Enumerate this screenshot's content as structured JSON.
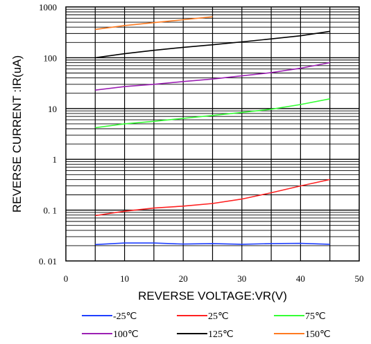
{
  "chart_data": {
    "type": "line",
    "title": "",
    "xlabel": "REVERSE VOLTAGE:VR(V)",
    "ylabel": "REVERSE CURRENT :IR(uA)",
    "xlim": [
      0,
      50
    ],
    "ylim": [
      0.01,
      1000
    ],
    "y_scale": "log",
    "grid": true,
    "legend_position": "bottom",
    "x_ticks": [
      "0",
      "10",
      "20",
      "30",
      "40",
      "50"
    ],
    "y_ticks": [
      "0. 01",
      "0. 1",
      "1",
      "10",
      "100",
      "1000"
    ],
    "series": [
      {
        "name": "-25℃",
        "color": "#1f3fff",
        "x": [
          5,
          10,
          15,
          20,
          25,
          30,
          35,
          40,
          45
        ],
        "y": [
          0.021,
          0.0225,
          0.0225,
          0.0215,
          0.022,
          0.0213,
          0.022,
          0.0222,
          0.0213
        ]
      },
      {
        "name": "25℃",
        "color": "#ff2020",
        "x": [
          5,
          10,
          15,
          20,
          25,
          30,
          35,
          40,
          45
        ],
        "y": [
          0.078,
          0.095,
          0.11,
          0.12,
          0.135,
          0.165,
          0.22,
          0.3,
          0.4
        ]
      },
      {
        "name": "75℃",
        "color": "#33ff33",
        "x": [
          5,
          10,
          15,
          20,
          25,
          30,
          35,
          40,
          45
        ],
        "y": [
          4.2,
          5.0,
          5.6,
          6.4,
          7.3,
          8.4,
          9.7,
          12.0,
          15.5
        ]
      },
      {
        "name": "100℃",
        "color": "#9b1fb3",
        "x": [
          5,
          10,
          15,
          20,
          25,
          30,
          35,
          40,
          45
        ],
        "y": [
          23,
          27,
          30,
          34,
          38,
          44,
          51,
          62,
          80
        ]
      },
      {
        "name": "125℃",
        "color": "#000000",
        "x": [
          5,
          10,
          15,
          20,
          25,
          30,
          35,
          40,
          45
        ],
        "y": [
          100,
          120,
          140,
          160,
          180,
          205,
          235,
          270,
          330
        ]
      },
      {
        "name": "150℃",
        "color": "#ff7a20",
        "x": [
          5,
          10,
          15,
          20,
          25
        ],
        "y": [
          360,
          430,
          490,
          560,
          640
        ]
      }
    ]
  }
}
